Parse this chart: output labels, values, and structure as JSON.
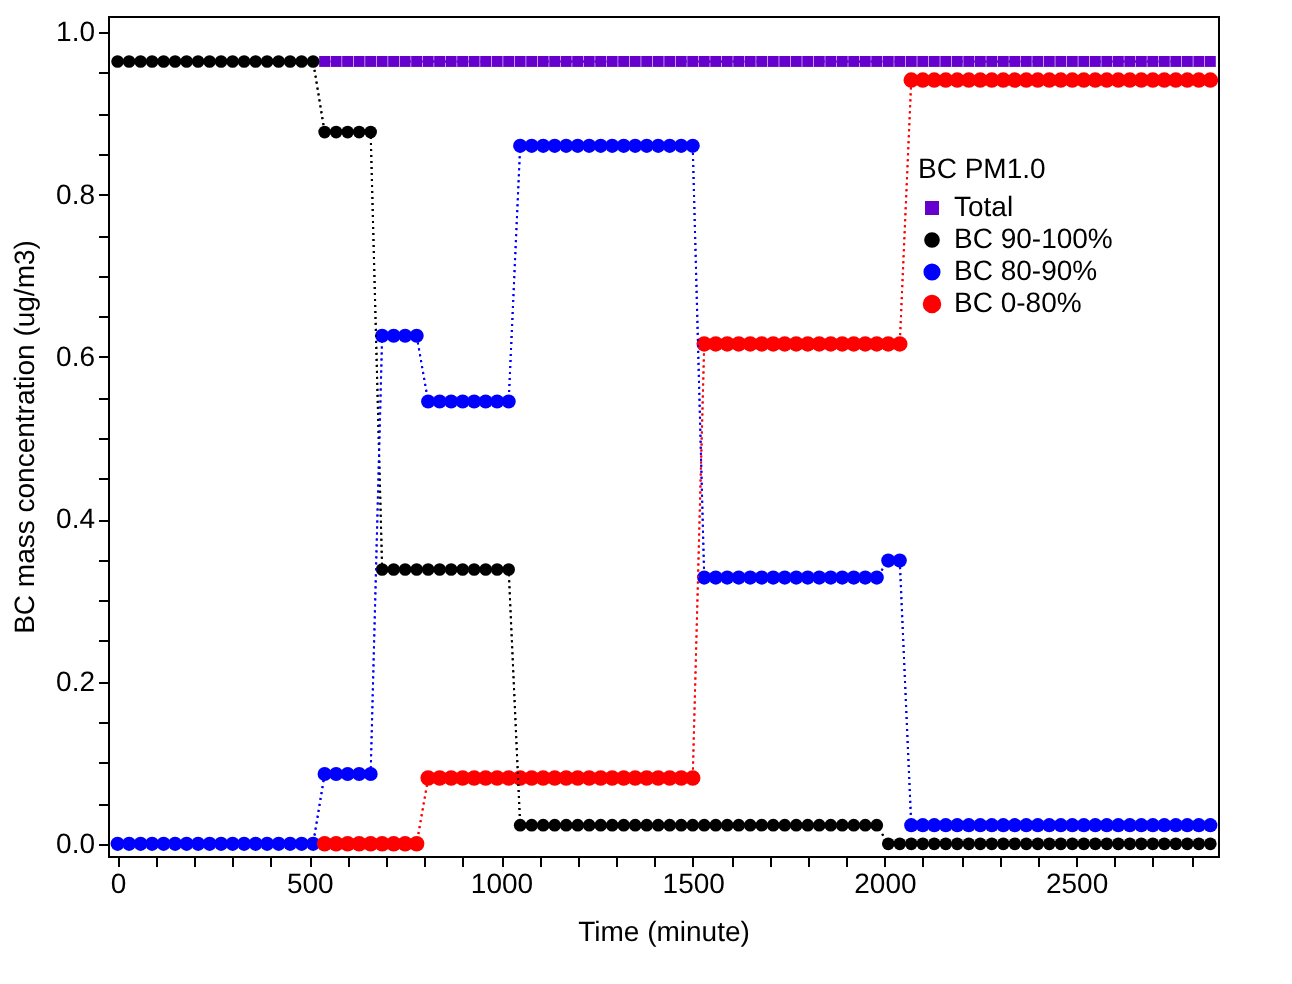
{
  "chart_data": {
    "type": "line",
    "xlabel": "Time (minute)",
    "ylabel": "BC mass concentration (ug/m3)",
    "legend_title": "BC  PM1.0",
    "x": [
      0,
      30,
      60,
      90,
      120,
      150,
      180,
      210,
      240,
      270,
      300,
      330,
      360,
      390,
      420,
      450,
      480,
      510,
      540,
      570,
      600,
      630,
      660,
      690,
      720,
      750,
      780,
      810,
      840,
      870,
      900,
      930,
      960,
      990,
      1020,
      1050,
      1080,
      1110,
      1140,
      1170,
      1200,
      1230,
      1260,
      1290,
      1320,
      1350,
      1380,
      1410,
      1440,
      1470,
      1500,
      1530,
      1560,
      1590,
      1620,
      1650,
      1680,
      1710,
      1740,
      1770,
      1800,
      1830,
      1860,
      1890,
      1920,
      1950,
      1980,
      2010,
      2040,
      2070,
      2100,
      2130,
      2160,
      2190,
      2220,
      2250,
      2280,
      2310,
      2340,
      2370,
      2400,
      2430,
      2460,
      2490,
      2520,
      2550,
      2580,
      2610,
      2640,
      2670,
      2700,
      2730,
      2760,
      2790,
      2820,
      2850
    ],
    "series": [
      {
        "name": "Total",
        "color": "#6600cc",
        "marker": "square",
        "values": [
          null,
          null,
          null,
          null,
          null,
          null,
          null,
          null,
          null,
          null,
          null,
          null,
          null,
          null,
          null,
          null,
          null,
          null,
          0.964,
          0.964,
          0.964,
          0.964,
          0.964,
          0.964,
          0.964,
          0.964,
          0.964,
          0.964,
          0.964,
          0.964,
          0.964,
          0.964,
          0.964,
          0.964,
          0.964,
          0.964,
          0.964,
          0.964,
          0.964,
          0.964,
          0.964,
          0.964,
          0.964,
          0.964,
          0.964,
          0.964,
          0.964,
          0.964,
          0.964,
          0.964,
          0.964,
          0.964,
          0.964,
          0.964,
          0.964,
          0.964,
          0.964,
          0.964,
          0.964,
          0.964,
          0.964,
          0.964,
          0.964,
          0.964,
          0.964,
          0.964,
          0.964,
          0.964,
          0.964,
          0.964,
          0.964,
          0.964,
          0.964,
          0.964,
          0.964,
          0.964,
          0.964,
          0.964,
          0.964,
          0.964,
          0.964,
          0.964,
          0.964,
          0.964,
          0.964,
          0.964,
          0.964,
          0.964,
          0.964,
          0.964,
          0.964,
          0.964,
          0.964,
          0.964,
          0.964,
          0.964
        ]
      },
      {
        "name": "BC 90-100%",
        "color": "#000000",
        "marker": "circle",
        "values": [
          0.964,
          0.964,
          0.964,
          0.964,
          0.964,
          0.964,
          0.964,
          0.964,
          0.964,
          0.964,
          0.964,
          0.964,
          0.964,
          0.964,
          0.964,
          0.964,
          0.964,
          0.964,
          0.877,
          0.877,
          0.877,
          0.877,
          0.877,
          0.338,
          0.338,
          0.338,
          0.338,
          0.338,
          0.338,
          0.338,
          0.338,
          0.338,
          0.338,
          0.338,
          0.338,
          0.023,
          0.023,
          0.023,
          0.023,
          0.023,
          0.023,
          0.023,
          0.023,
          0.023,
          0.023,
          0.023,
          0.023,
          0.023,
          0.023,
          0.023,
          0.023,
          0.023,
          0.023,
          0.023,
          0.023,
          0.023,
          0.023,
          0.023,
          0.023,
          0.023,
          0.023,
          0.023,
          0.023,
          0.023,
          0.023,
          0.023,
          0.023,
          0,
          0,
          0,
          0,
          0,
          0,
          0,
          0,
          0,
          0,
          0,
          0,
          0,
          0,
          0,
          0,
          0,
          0,
          0,
          0,
          0,
          0,
          0,
          0,
          0,
          0,
          0,
          0,
          0
        ]
      },
      {
        "name": "BC 80-90%",
        "color": "#0000ff",
        "marker": "circle",
        "values": [
          0,
          0,
          0,
          0,
          0,
          0,
          0,
          0,
          0,
          0,
          0,
          0,
          0,
          0,
          0,
          0,
          0,
          0,
          0.086,
          0.086,
          0.086,
          0.086,
          0.086,
          0.626,
          0.626,
          0.626,
          0.626,
          0.545,
          0.545,
          0.545,
          0.545,
          0.545,
          0.545,
          0.545,
          0.545,
          0.86,
          0.86,
          0.86,
          0.86,
          0.86,
          0.86,
          0.86,
          0.86,
          0.86,
          0.86,
          0.86,
          0.86,
          0.86,
          0.86,
          0.86,
          0.86,
          0.328,
          0.328,
          0.328,
          0.328,
          0.328,
          0.328,
          0.328,
          0.328,
          0.328,
          0.328,
          0.328,
          0.328,
          0.328,
          0.328,
          0.328,
          0.328,
          0.349,
          0.349,
          0.023,
          0.023,
          0.023,
          0.023,
          0.023,
          0.023,
          0.023,
          0.023,
          0.023,
          0.023,
          0.023,
          0.023,
          0.023,
          0.023,
          0.023,
          0.023,
          0.023,
          0.023,
          0.023,
          0.023,
          0.023,
          0.023,
          0.023,
          0.023,
          0.023,
          0.023,
          0.023
        ]
      },
      {
        "name": "BC  0-80%",
        "color": "#ff0000",
        "marker": "circle",
        "values": [
          null,
          null,
          null,
          null,
          null,
          null,
          null,
          null,
          null,
          null,
          null,
          null,
          null,
          null,
          null,
          null,
          null,
          null,
          0,
          0,
          0,
          0,
          0,
          0,
          0,
          0,
          0,
          0.081,
          0.081,
          0.081,
          0.081,
          0.081,
          0.081,
          0.081,
          0.081,
          0.081,
          0.081,
          0.081,
          0.081,
          0.081,
          0.081,
          0.081,
          0.081,
          0.081,
          0.081,
          0.081,
          0.081,
          0.081,
          0.081,
          0.081,
          0.081,
          0.616,
          0.616,
          0.616,
          0.616,
          0.616,
          0.616,
          0.616,
          0.616,
          0.616,
          0.616,
          0.616,
          0.616,
          0.616,
          0.616,
          0.616,
          0.616,
          0.616,
          0.616,
          0.941,
          0.941,
          0.941,
          0.941,
          0.941,
          0.941,
          0.941,
          0.941,
          0.941,
          0.941,
          0.941,
          0.941,
          0.941,
          0.941,
          0.941,
          0.941,
          0.941,
          0.941,
          0.941,
          0.941,
          0.941,
          0.941,
          0.941,
          0.941,
          0.941,
          0.941,
          0.941
        ]
      }
    ],
    "xlim": [
      -25,
      2870
    ],
    "ylim": [
      -0.015,
      1.02
    ],
    "xticks": [
      0,
      {
        "value": 100,
        "label": null
      },
      {
        "value": 200,
        "label": null
      },
      {
        "value": 300,
        "label": null
      },
      {
        "value": 400,
        "label": null
      },
      500,
      {
        "value": 600,
        "label": null
      },
      {
        "value": 700,
        "label": null
      },
      {
        "value": 800,
        "label": null
      },
      {
        "value": 900,
        "label": null
      },
      1000,
      {
        "value": 1100,
        "label": null
      },
      {
        "value": 1200,
        "label": null
      },
      {
        "value": 1300,
        "label": null
      },
      {
        "value": 1400,
        "label": null
      },
      1500,
      {
        "value": 1600,
        "label": null
      },
      {
        "value": 1700,
        "label": null
      },
      {
        "value": 1800,
        "label": null
      },
      {
        "value": 1900,
        "label": null
      },
      2000,
      {
        "value": 2100,
        "label": null
      },
      {
        "value": 2200,
        "label": null
      },
      {
        "value": 2300,
        "label": null
      },
      {
        "value": 2400,
        "label": null
      },
      2500,
      {
        "value": 2600,
        "label": null
      },
      {
        "value": 2700,
        "label": null
      },
      {
        "value": 2800,
        "label": null
      }
    ],
    "yticks": [
      {
        "value": 0,
        "label": "0.0"
      },
      {
        "value": 0.05,
        "label": null
      },
      {
        "value": 0.1,
        "label": null
      },
      {
        "value": 0.15,
        "label": null
      },
      {
        "value": 0.2,
        "label": "0.2"
      },
      {
        "value": 0.25,
        "label": null
      },
      {
        "value": 0.3,
        "label": null
      },
      {
        "value": 0.35,
        "label": null
      },
      {
        "value": 0.4,
        "label": "0.4"
      },
      {
        "value": 0.45,
        "label": null
      },
      {
        "value": 0.5,
        "label": null
      },
      {
        "value": 0.55,
        "label": null
      },
      {
        "value": 0.6,
        "label": "0.6"
      },
      {
        "value": 0.65,
        "label": null
      },
      {
        "value": 0.7,
        "label": null
      },
      {
        "value": 0.75,
        "label": null
      },
      {
        "value": 0.8,
        "label": "0.8"
      },
      {
        "value": 0.85,
        "label": null
      },
      {
        "value": 0.9,
        "label": null
      },
      {
        "value": 0.95,
        "label": null
      },
      {
        "value": 1,
        "label": "1.0"
      }
    ],
    "grid": false,
    "legend": "top right",
    "line_style": "dotted"
  }
}
